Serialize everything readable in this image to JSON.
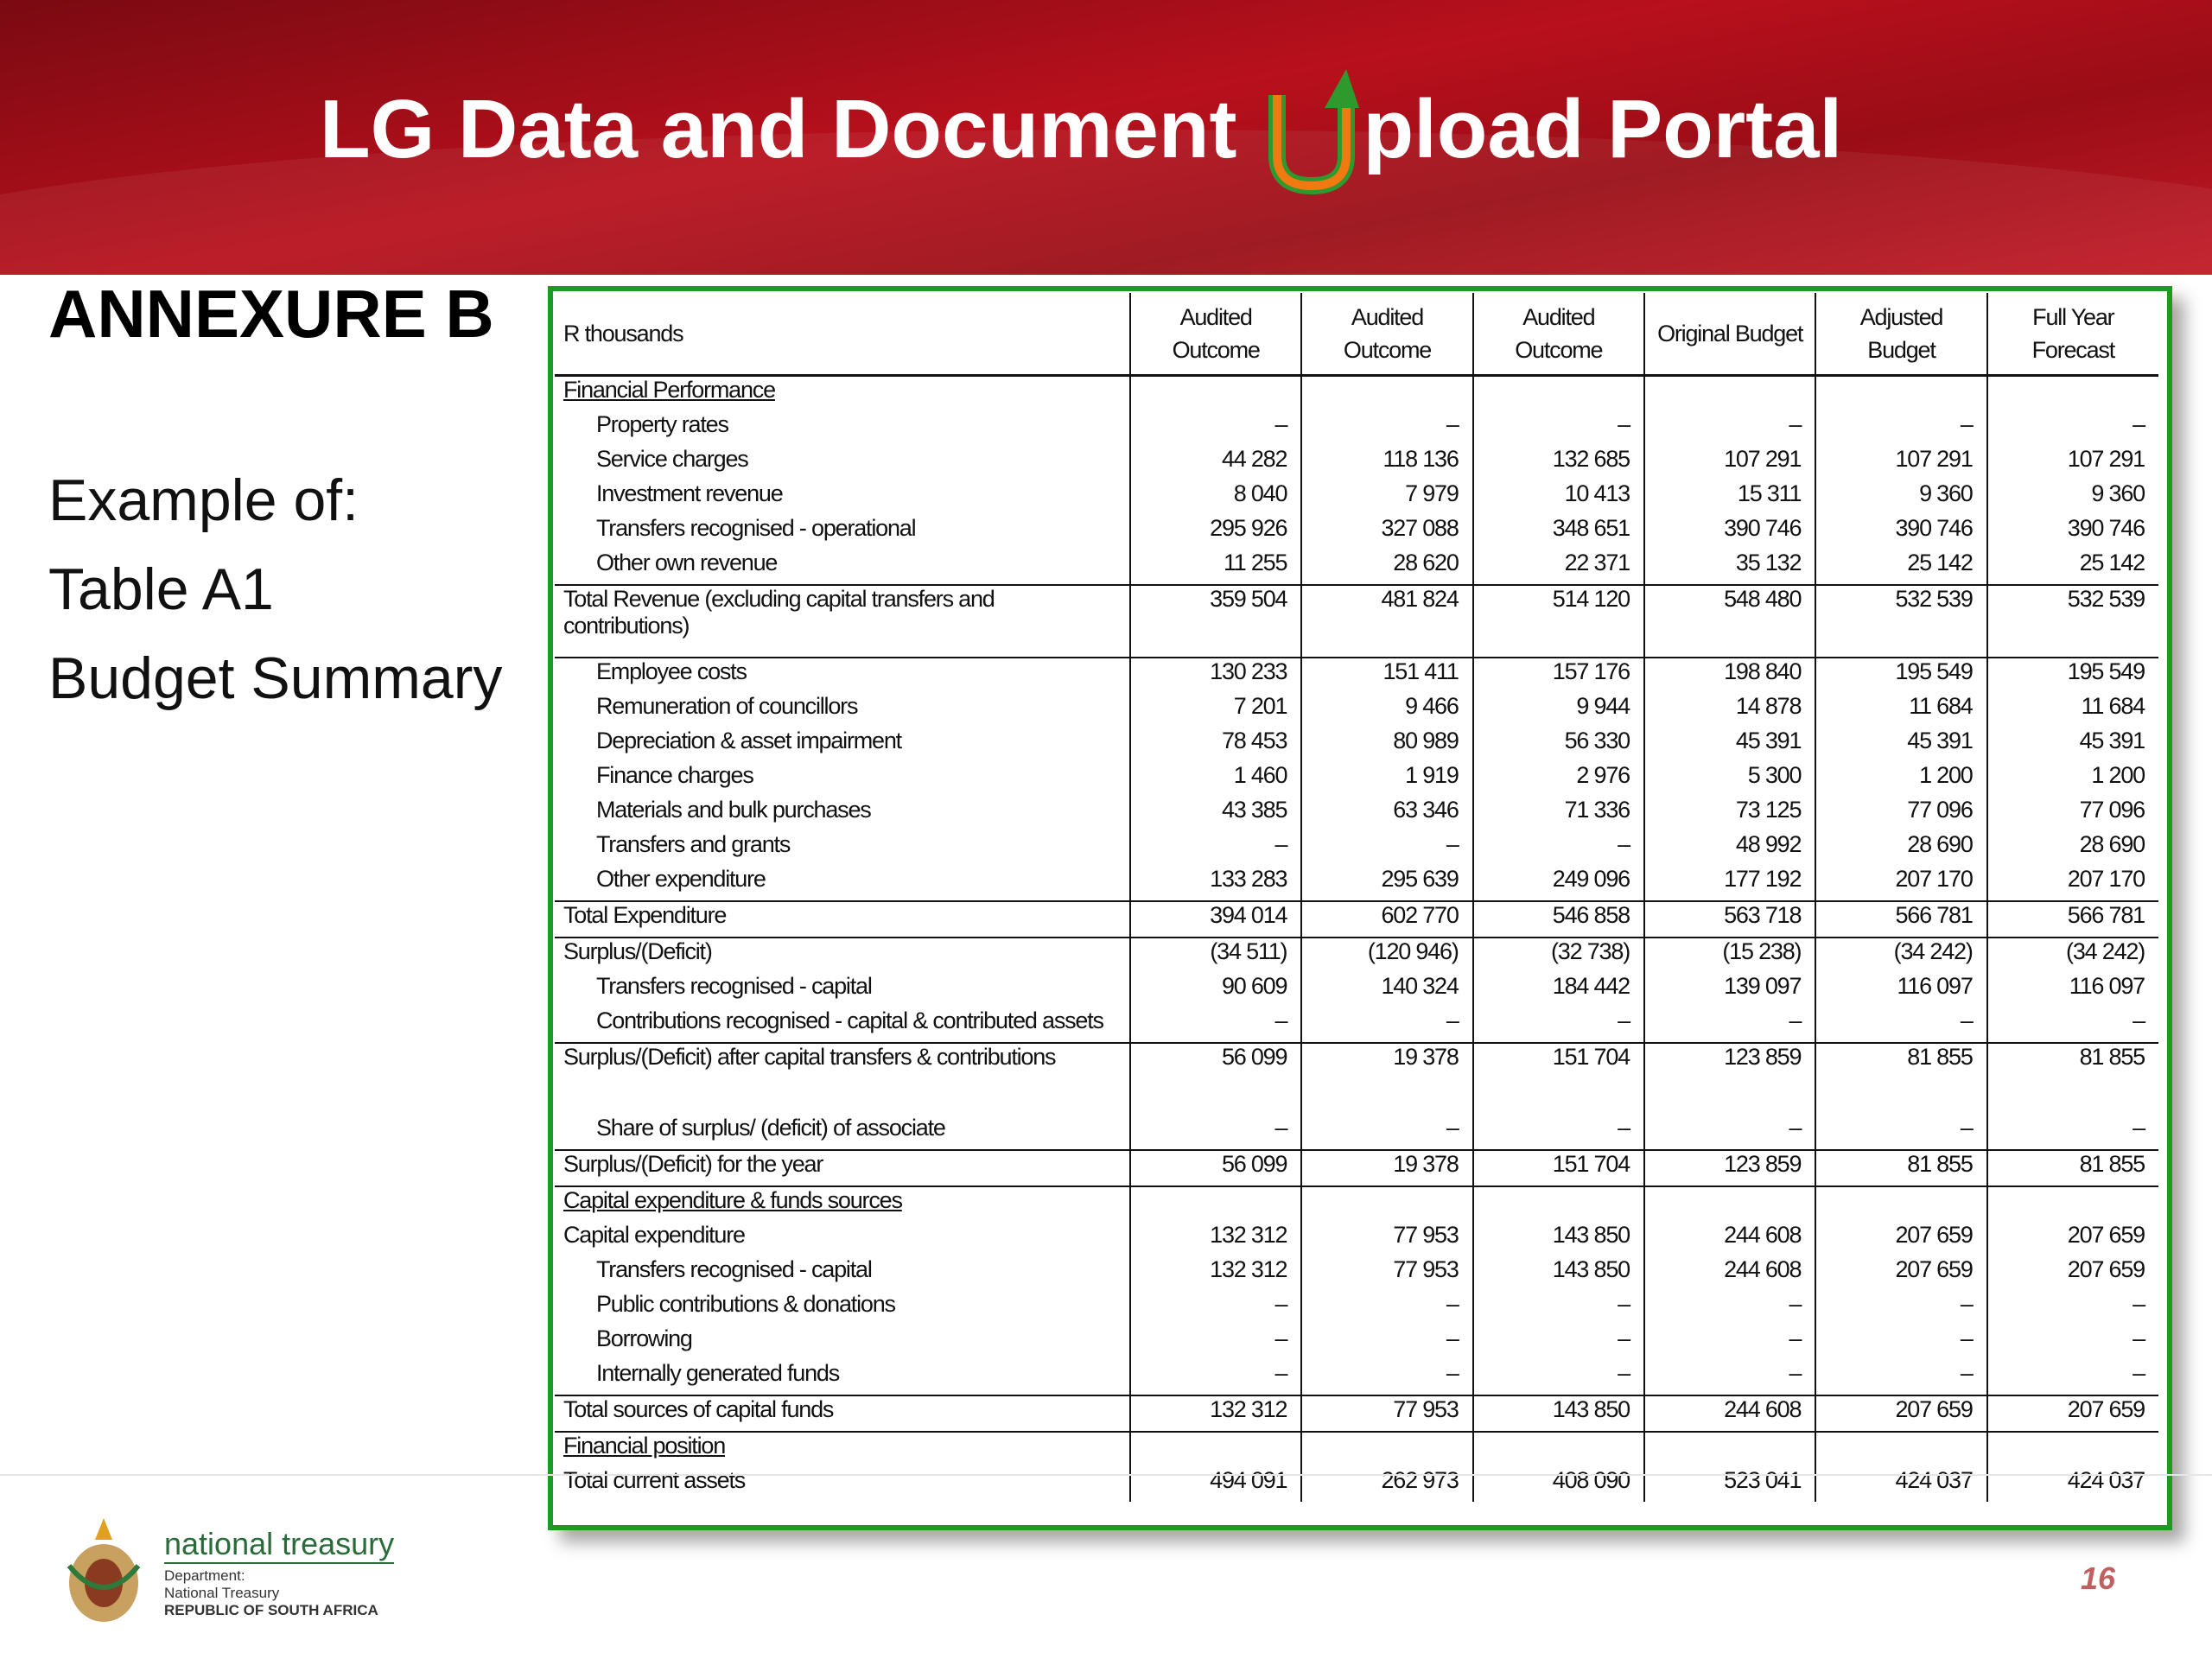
{
  "header": {
    "title_start": "LG Data and Document",
    "title_logo_letter": "U",
    "title_end": "pload Portal"
  },
  "sidebar": {
    "heading": "ANNEXURE B",
    "lines": [
      "Example of:",
      "Table A1",
      "Budget Summary"
    ]
  },
  "table": {
    "unit_label": "R thousands",
    "columns": [
      "Audited Outcome",
      "Audited Outcome",
      "Audited Outcome",
      "Original Budget",
      "Adjusted Budget",
      "Full Year Forecast"
    ],
    "rows": [
      {
        "label": "Financial Performance",
        "values": []
      },
      {
        "label": "Property rates",
        "values": [
          "–",
          "–",
          "–",
          "–",
          "–",
          "–"
        ]
      },
      {
        "label": "Service charges",
        "values": [
          "44 282",
          "118 136",
          "132 685",
          "107 291",
          "107 291",
          "107 291"
        ]
      },
      {
        "label": "Investment revenue",
        "values": [
          "8 040",
          "7 979",
          "10 413",
          "15 311",
          "9 360",
          "9 360"
        ]
      },
      {
        "label": "Transfers recognised - operational",
        "values": [
          "295 926",
          "327 088",
          "348 651",
          "390 746",
          "390 746",
          "390 746"
        ]
      },
      {
        "label": "Other own revenue",
        "values": [
          "11 255",
          "28 620",
          "22 371",
          "35 132",
          "25 142",
          "25 142"
        ]
      },
      {
        "label": "Total Revenue (excluding capital transfers and contributions)",
        "values": [
          "359 504",
          "481 824",
          "514 120",
          "548 480",
          "532 539",
          "532 539"
        ]
      },
      {
        "label": "Employee costs",
        "values": [
          "130 233",
          "151 411",
          "157 176",
          "198 840",
          "195 549",
          "195 549"
        ]
      },
      {
        "label": "Remuneration of councillors",
        "values": [
          "7 201",
          "9 466",
          "9 944",
          "14 878",
          "11 684",
          "11 684"
        ]
      },
      {
        "label": "Depreciation & asset impairment",
        "values": [
          "78 453",
          "80 989",
          "56 330",
          "45 391",
          "45 391",
          "45 391"
        ]
      },
      {
        "label": "Finance charges",
        "values": [
          "1 460",
          "1 919",
          "2 976",
          "5 300",
          "1 200",
          "1 200"
        ]
      },
      {
        "label": "Materials and bulk purchases",
        "values": [
          "43 385",
          "63 346",
          "71 336",
          "73 125",
          "77 096",
          "77 096"
        ]
      },
      {
        "label": "Transfers and grants",
        "values": [
          "–",
          "–",
          "–",
          "48 992",
          "28 690",
          "28 690"
        ]
      },
      {
        "label": "Other expenditure",
        "values": [
          "133 283",
          "295 639",
          "249 096",
          "177 192",
          "207 170",
          "207 170"
        ]
      },
      {
        "label": "Total Expenditure",
        "values": [
          "394 014",
          "602 770",
          "546 858",
          "563 718",
          "566 781",
          "566 781"
        ]
      },
      {
        "label": "Surplus/(Deficit)",
        "values": [
          "(34 511)",
          "(120 946)",
          "(32 738)",
          "(15 238)",
          "(34 242)",
          "(34 242)"
        ]
      },
      {
        "label": "Transfers recognised - capital",
        "values": [
          "90 609",
          "140 324",
          "184 442",
          "139 097",
          "116 097",
          "116 097"
        ]
      },
      {
        "label": "Contributions recognised - capital & contributed assets",
        "values": [
          "–",
          "–",
          "–",
          "–",
          "–",
          "–"
        ]
      },
      {
        "label": "Surplus/(Deficit) after capital transfers & contributions",
        "values": [
          "56 099",
          "19 378",
          "151 704",
          "123 859",
          "81 855",
          "81 855"
        ]
      },
      {
        "label": "Share of surplus/ (deficit) of associate",
        "values": [
          "–",
          "–",
          "–",
          "–",
          "–",
          "–"
        ]
      },
      {
        "label": "Surplus/(Deficit) for the year",
        "values": [
          "56 099",
          "19 378",
          "151 704",
          "123 859",
          "81 855",
          "81 855"
        ]
      },
      {
        "label": "Capital expenditure & funds sources",
        "values": []
      },
      {
        "label": "Capital expenditure",
        "values": [
          "132 312",
          "77 953",
          "143 850",
          "244 608",
          "207 659",
          "207 659"
        ]
      },
      {
        "label": "Transfers recognised - capital",
        "values": [
          "132 312",
          "77 953",
          "143 850",
          "244 608",
          "207 659",
          "207 659"
        ]
      },
      {
        "label": "Public contributions & donations",
        "values": [
          "–",
          "–",
          "–",
          "–",
          "–",
          "–"
        ]
      },
      {
        "label": "Borrowing",
        "values": [
          "–",
          "–",
          "–",
          "–",
          "–",
          "–"
        ]
      },
      {
        "label": "Internally generated funds",
        "values": [
          "–",
          "–",
          "–",
          "–",
          "–",
          "–"
        ]
      },
      {
        "label": "Total sources of capital funds",
        "values": [
          "132 312",
          "77 953",
          "143 850",
          "244 608",
          "207 659",
          "207 659"
        ]
      },
      {
        "label": "Financial position",
        "values": []
      },
      {
        "label": "Total current assets",
        "values": [
          "494 091",
          "262 973",
          "408 090",
          "523 041",
          "424 037",
          "424 037"
        ]
      }
    ]
  },
  "footer": {
    "org_name": "national treasury",
    "dept_lines": [
      "Department:",
      "National Treasury",
      "REPUBLIC OF SOUTH AFRICA"
    ],
    "page_number": "16"
  }
}
